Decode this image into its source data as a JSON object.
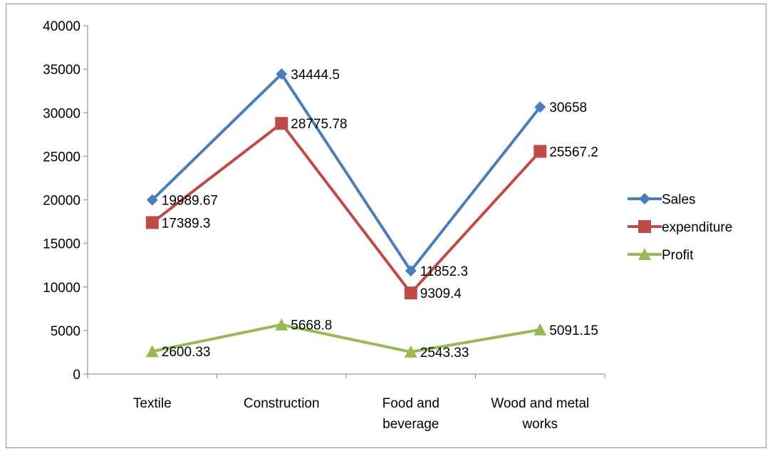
{
  "chart_data": {
    "type": "line",
    "categories": [
      "Textile",
      "Construction",
      "Food and beverage",
      "Wood and metal works"
    ],
    "category_lines": [
      [
        "Textile"
      ],
      [
        "Construction"
      ],
      [
        "Food and",
        "beverage"
      ],
      [
        "Wood and metal",
        "works"
      ]
    ],
    "series": [
      {
        "name": "Sales",
        "values": [
          19989.67,
          34444.5,
          11852.3,
          30658
        ],
        "labels": [
          "19989.67",
          "34444.5",
          "11852.3",
          "30658"
        ],
        "color": "#4a7ebb",
        "marker": "diamond"
      },
      {
        "name": "expenditure",
        "values": [
          17389.3,
          28775.78,
          9309.4,
          25567.2
        ],
        "labels": [
          "17389.3",
          "28775.78",
          "9309.4",
          "25567.2"
        ],
        "color": "#be4b48",
        "marker": "square"
      },
      {
        "name": "Profit",
        "values": [
          2600.33,
          5668.8,
          2543.33,
          5091.15
        ],
        "labels": [
          "2600.33",
          "5668.8",
          "2543.33",
          "5091.15"
        ],
        "color": "#98b954",
        "marker": "triangle"
      }
    ],
    "ylim": [
      0,
      40000
    ],
    "yticks": [
      "0",
      "5000",
      "10000",
      "15000",
      "20000",
      "25000",
      "30000",
      "35000",
      "40000"
    ],
    "grid": false,
    "legend": "right",
    "title": "",
    "xlabel": "",
    "ylabel": ""
  }
}
